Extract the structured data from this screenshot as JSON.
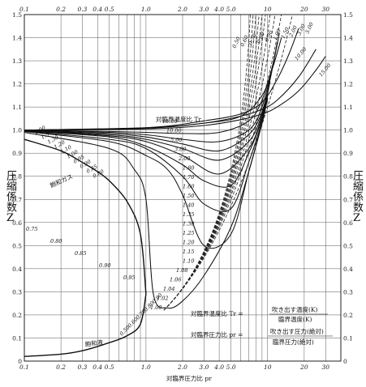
{
  "chart_data": {
    "type": "line",
    "xscale": "log",
    "xlim": [
      0.1,
      40
    ],
    "ylim": [
      0,
      1.5
    ],
    "x_tick_labels_top": [
      "0.1",
      "0.2",
      "0.3",
      "0.4",
      "0.5",
      "1.0",
      "2.0",
      "3.0",
      "4.0",
      "5.0",
      "10",
      "20",
      "30"
    ],
    "x_tick_labels_bottom": [
      "0.1",
      "0.2",
      "0.3",
      "0.4",
      "0.5",
      "1.0",
      "2.0",
      "3.0",
      "4.0",
      "5.0",
      "10",
      "20",
      "30"
    ],
    "x_ticks": [
      0.1,
      0.2,
      0.3,
      0.4,
      0.5,
      1,
      2,
      3,
      4,
      5,
      10,
      20,
      30
    ],
    "y_tick_labels": [
      "0",
      "0.1",
      "0.2",
      "0.3",
      "0.4",
      "0.5",
      "0.6",
      "0.7",
      "0.8",
      "0.9",
      "1.0",
      "1.1",
      "1.2",
      "1.3",
      "1.4",
      "1.5"
    ],
    "y_ticks": [
      0,
      0.1,
      0.2,
      0.3,
      0.4,
      0.5,
      0.6,
      0.7,
      0.8,
      0.9,
      1.0,
      1.1,
      1.2,
      1.3,
      1.4,
      1.5
    ],
    "xlabel": "対臨界圧力比 pr",
    "ylabel_left": "圧縮係数Z",
    "ylabel_right": "圧縮係数Z",
    "series": [
      {
        "name": "15.00",
        "x": [
          0.1,
          1,
          3,
          6,
          9,
          12,
          18,
          25,
          30
        ],
        "y": [
          1.0,
          1.005,
          1.02,
          1.045,
          1.07,
          1.1,
          1.17,
          1.26,
          1.32
        ]
      },
      {
        "name": "10.00",
        "x": [
          0.1,
          1,
          3,
          6,
          9,
          12,
          18,
          25
        ],
        "y": [
          1.0,
          1.008,
          1.03,
          1.06,
          1.09,
          1.13,
          1.23,
          1.35
        ]
      },
      {
        "name": "5.00",
        "x": [
          0.1,
          1,
          3,
          6,
          9,
          12,
          15,
          18
        ],
        "y": [
          1.0,
          1.01,
          1.04,
          1.07,
          1.12,
          1.22,
          1.33,
          1.44
        ]
      },
      {
        "name": "3.00",
        "x": [
          0.1,
          1,
          3,
          6,
          9,
          11,
          13
        ],
        "y": [
          1.0,
          1.01,
          1.03,
          1.06,
          1.15,
          1.27,
          1.4
        ]
      },
      {
        "name": "2.00",
        "x": [
          0.1,
          0.5,
          1,
          2,
          4,
          7,
          9,
          11,
          12.5
        ],
        "y": [
          1.0,
          0.994,
          0.99,
          0.985,
          0.99,
          1.04,
          1.13,
          1.28,
          1.42
        ]
      },
      {
        "name": "1.80",
        "x": [
          0.1,
          0.5,
          1,
          2,
          4,
          7,
          9,
          11,
          12
        ],
        "y": [
          1.0,
          0.99,
          0.98,
          0.96,
          0.95,
          1.0,
          1.1,
          1.28,
          1.38
        ]
      },
      {
        "name": "1.60",
        "x": [
          0.1,
          0.5,
          1,
          2,
          4,
          7,
          9,
          10.5,
          11.5
        ],
        "y": [
          0.998,
          0.985,
          0.97,
          0.94,
          0.91,
          0.98,
          1.08,
          1.22,
          1.33
        ]
      },
      {
        "name": "1.50",
        "x": [
          0.1,
          0.5,
          1,
          2,
          4,
          7,
          9,
          10.5
        ],
        "y": [
          0.998,
          0.98,
          0.96,
          0.92,
          0.87,
          0.95,
          1.07,
          1.21
        ]
      },
      {
        "name": "1.40",
        "x": [
          0.1,
          0.5,
          1,
          2,
          4,
          7,
          9,
          10.2
        ],
        "y": [
          0.997,
          0.975,
          0.95,
          0.89,
          0.81,
          0.92,
          1.06,
          1.18
        ]
      },
      {
        "name": "1.30",
        "x": [
          0.1,
          0.5,
          1,
          2,
          3,
          5,
          7,
          9,
          10
        ],
        "y": [
          0.996,
          0.97,
          0.93,
          0.85,
          0.78,
          0.76,
          0.9,
          1.05,
          1.16
        ]
      },
      {
        "name": "1.20",
        "x": [
          0.1,
          0.5,
          1,
          2,
          3,
          5,
          7,
          9,
          10
        ],
        "y": [
          0.995,
          0.96,
          0.92,
          0.8,
          0.68,
          0.66,
          0.86,
          1.04,
          1.15
        ]
      },
      {
        "name": "1.10",
        "x": [
          0.1,
          0.5,
          1,
          1.5,
          2,
          3,
          5,
          7,
          9,
          10
        ],
        "y": [
          0.994,
          0.95,
          0.89,
          0.83,
          0.72,
          0.5,
          0.55,
          0.82,
          1.03,
          1.14
        ]
      },
      {
        "name": "1.00",
        "x": [
          0.1,
          0.5,
          0.8,
          1.0,
          1.15,
          1.5,
          2,
          3,
          5,
          7,
          9,
          10
        ],
        "y": [
          0.99,
          0.92,
          0.83,
          0.7,
          0.29,
          0.23,
          0.26,
          0.37,
          0.58,
          0.82,
          1.03,
          1.14
        ]
      },
      {
        "name": "飽和ガス",
        "x": [
          0.1,
          0.2,
          0.3,
          0.4,
          0.5,
          0.7,
          0.9,
          1.0
        ],
        "y": [
          0.96,
          0.91,
          0.86,
          0.82,
          0.78,
          0.69,
          0.55,
          0.29
        ]
      },
      {
        "name": "飽和液",
        "x": [
          0.1,
          0.2,
          0.3,
          0.5,
          0.7,
          0.9,
          1.0
        ],
        "y": [
          0.02,
          0.03,
          0.045,
          0.08,
          0.11,
          0.16,
          0.29
        ]
      }
    ],
    "curve_labels_dashed": [
      "0.50",
      "0.60",
      "0.70",
      "0.80",
      "0.90",
      "1.00",
      "1.50",
      "2.00",
      "3.00",
      "5.00"
    ],
    "curve_labels_solid_top": [
      "10.00",
      "15.00"
    ],
    "curve_labels_left": [
      "2.00",
      "1.50",
      "1.30",
      "1.20",
      "1.10",
      "1.00",
      "0.95",
      "0.90",
      "0.85",
      "0.80"
    ],
    "curve_labels_middle": [
      "15.00",
      "10.00",
      "5.00",
      "3.00",
      "2.00",
      "1.80",
      "1.70",
      "1.60",
      "1.50",
      "1.40",
      "1.35",
      "1.30",
      "1.25",
      "1.20",
      "1.15",
      "1.10",
      "1.08",
      "1.06",
      "1.04",
      "1.02",
      "1.00"
    ],
    "curve_labels_vertical": [
      "0.75",
      "0.80",
      "0.85",
      "0.90",
      "0.95"
    ],
    "curve_labels_low": [
      "0.90",
      "0.80",
      "0.70",
      "0.60",
      "0.50"
    ],
    "annotations": {
      "tr_label": "対臨界温度比 Tr",
      "saturated_gas": "飽和ガス",
      "saturated_liquid": "飽和液",
      "tr_def_left": "対臨界温度比 Tr =",
      "tr_def_num": "吹き出す温度(K)",
      "tr_def_den": "臨界温度(K)",
      "pr_def_left": "対臨界圧力比 pr =",
      "pr_def_num": "吹き出す圧力(絶対)",
      "pr_def_den": "臨界圧力(絶対)"
    }
  }
}
